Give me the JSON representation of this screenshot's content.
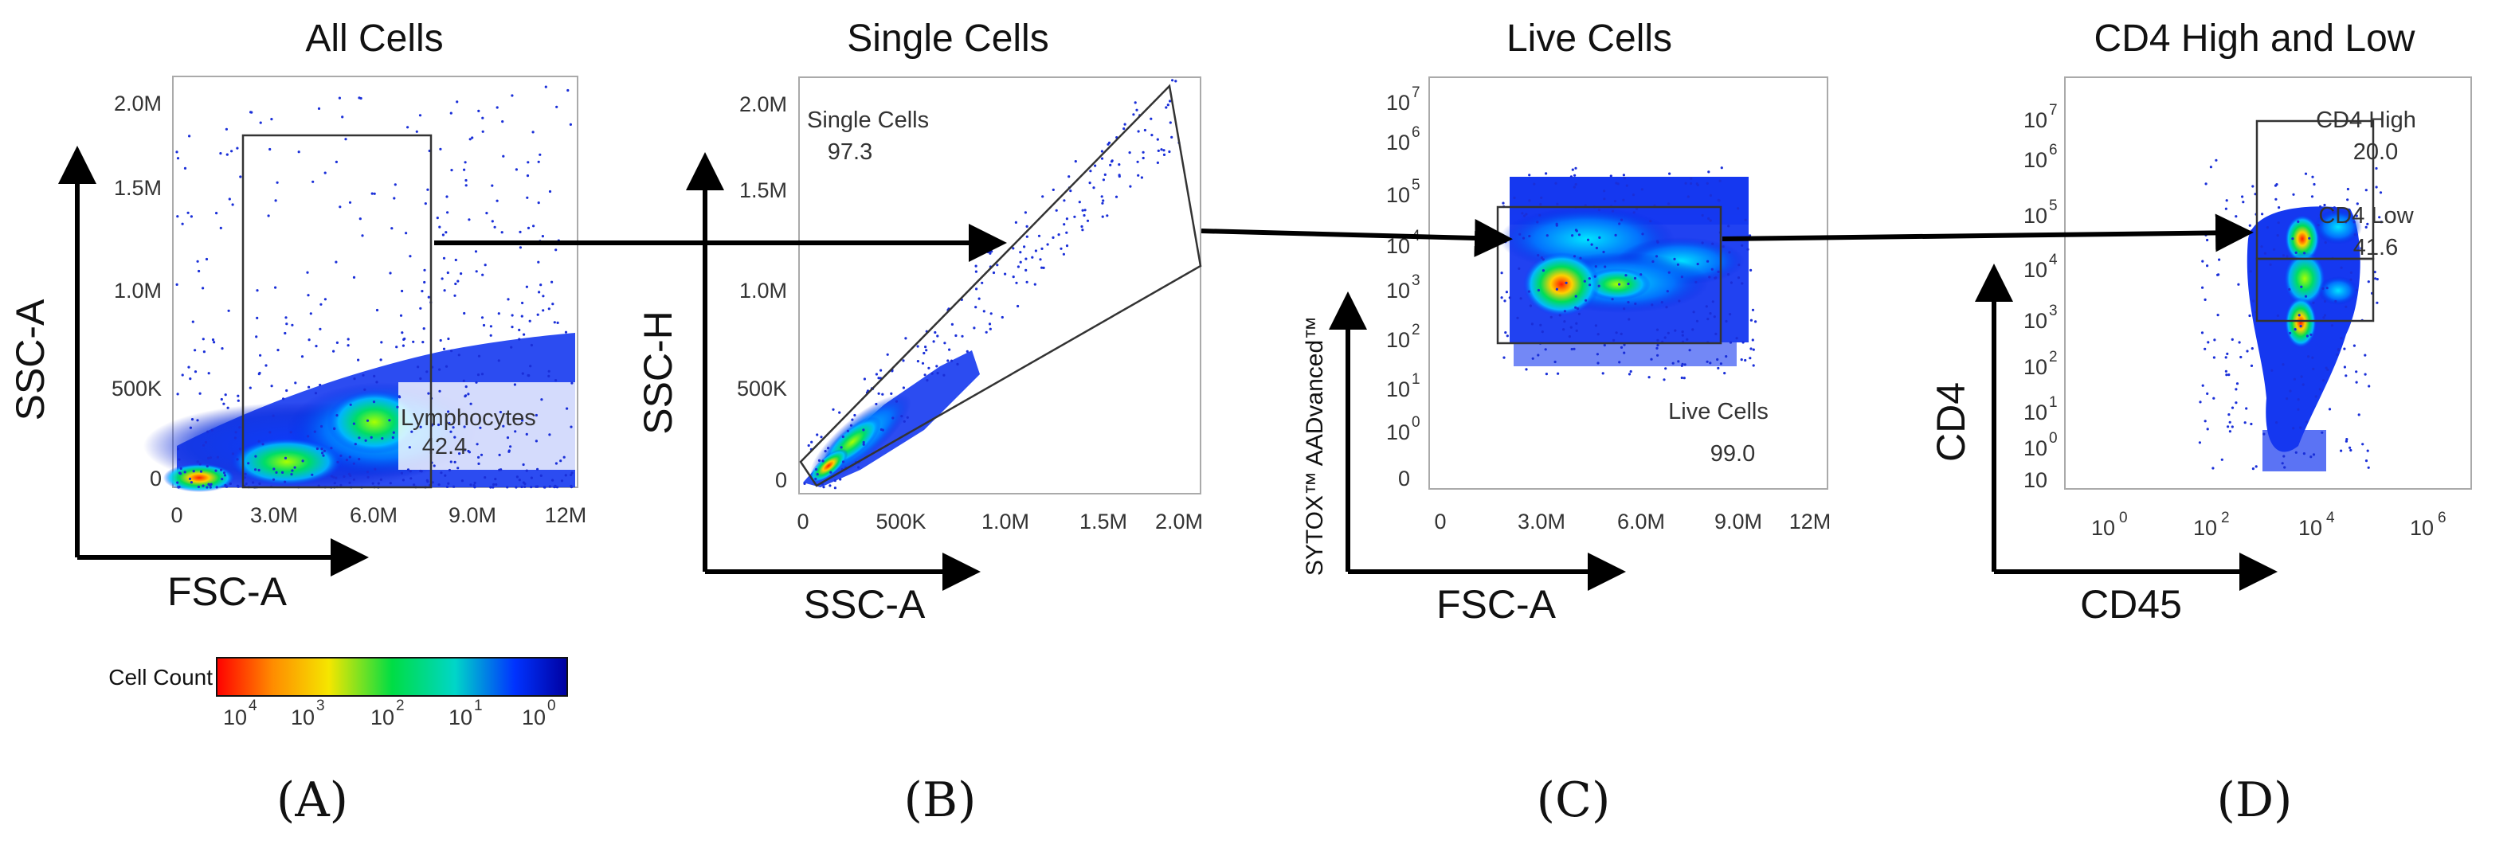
{
  "chart_data": [
    {
      "type": "scatter",
      "panel_label": "(A)",
      "title": "All Cells",
      "xlabel": "FSC-A",
      "ylabel": "SSC-A",
      "x_ticks": [
        "0",
        "3.0M",
        "6.0M",
        "9.0M",
        "12M"
      ],
      "y_ticks": [
        "0",
        "500K",
        "1.0M",
        "1.5M",
        "2.0M"
      ],
      "xlim": [
        0,
        12500000
      ],
      "ylim": [
        0,
        2100000
      ],
      "gate": {
        "name": "Lymphocytes",
        "percent": "42.4"
      }
    },
    {
      "type": "scatter",
      "panel_label": "(B)",
      "title": "Single Cells",
      "xlabel": "SSC-A",
      "ylabel": "SSC-H",
      "x_ticks": [
        "0",
        "500K",
        "1.0M",
        "1.5M",
        "2.0M"
      ],
      "y_ticks": [
        "0",
        "500K",
        "1.0M",
        "1.5M",
        "2.0M"
      ],
      "xlim": [
        0,
        2000000
      ],
      "ylim": [
        0,
        2100000
      ],
      "gate": {
        "name": "Single Cells",
        "percent": "97.3"
      }
    },
    {
      "type": "scatter",
      "panel_label": "(C)",
      "title": "Live Cells",
      "xlabel": "FSC-A",
      "ylabel": "SYTOX™ AADvanced™",
      "x_ticks": [
        "0",
        "3.0M",
        "6.0M",
        "9.0M",
        "12M"
      ],
      "y_ticks": [
        {
          "base": "10",
          "exp": "7"
        },
        {
          "base": "10",
          "exp": "6"
        },
        {
          "base": "10",
          "exp": "5"
        },
        {
          "base": "10",
          "exp": "4"
        },
        {
          "base": "10",
          "exp": "3"
        },
        {
          "base": "10",
          "exp": "2"
        },
        {
          "base": "10",
          "exp": "1"
        },
        {
          "base": "10",
          "exp": "0"
        },
        {
          "base": "0",
          "exp": ""
        }
      ],
      "gate": {
        "name": "Live Cells",
        "percent": "99.0"
      }
    },
    {
      "type": "scatter",
      "panel_label": "(D)",
      "title": "CD4 High and Low",
      "xlabel": "CD45",
      "ylabel": "CD4",
      "x_ticks": [
        {
          "base": "10",
          "exp": "0"
        },
        {
          "base": "10",
          "exp": "2"
        },
        {
          "base": "10",
          "exp": "4"
        },
        {
          "base": "10",
          "exp": "6"
        }
      ],
      "y_ticks": [
        {
          "base": "10",
          "exp": "7"
        },
        {
          "base": "10",
          "exp": "6"
        },
        {
          "base": "10",
          "exp": "5"
        },
        {
          "base": "10",
          "exp": "4"
        },
        {
          "base": "10",
          "exp": "3"
        },
        {
          "base": "10",
          "exp": "2"
        },
        {
          "base": "10",
          "exp": "1"
        },
        {
          "base": "10",
          "exp": "0"
        },
        {
          "base": "10",
          "exp": ""
        }
      ],
      "gates": [
        {
          "name": "CD4 High",
          "percent": "20.0"
        },
        {
          "name": "CD4 Low",
          "percent": "41.6"
        }
      ]
    }
  ],
  "legend": {
    "label": "Cell Count",
    "ticks": [
      {
        "base": "10",
        "exp": "4"
      },
      {
        "base": "10",
        "exp": "3"
      },
      {
        "base": "10",
        "exp": "2"
      },
      {
        "base": "10",
        "exp": "1"
      },
      {
        "base": "10",
        "exp": "0"
      }
    ],
    "colors": [
      "#ff0000",
      "#ff8c00",
      "#f5e600",
      "#00dd44",
      "#00d6c8",
      "#0033ff",
      "#0000a0"
    ]
  }
}
